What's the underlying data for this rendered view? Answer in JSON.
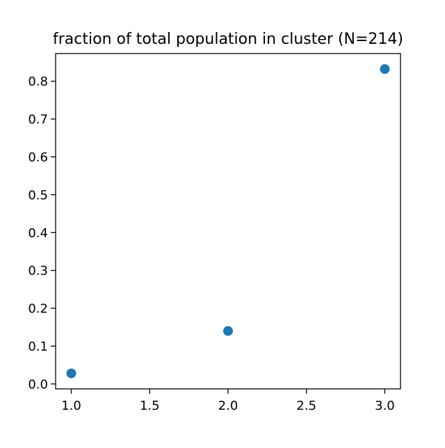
{
  "chart_data": {
    "type": "scatter",
    "title": "fraction of total population in cluster (N=214)",
    "xlabel": "",
    "ylabel": "",
    "xlim": [
      0.9,
      3.1
    ],
    "ylim": [
      -0.013,
      0.873
    ],
    "x_ticks": [
      1.0,
      1.5,
      2.0,
      2.5,
      3.0
    ],
    "x_tick_labels": [
      "1.0",
      "1.5",
      "2.0",
      "2.5",
      "3.0"
    ],
    "y_ticks": [
      0.0,
      0.1,
      0.2,
      0.3,
      0.4,
      0.5,
      0.6,
      0.7,
      0.8
    ],
    "y_tick_labels": [
      "0.0",
      "0.1",
      "0.2",
      "0.3",
      "0.4",
      "0.5",
      "0.6",
      "0.7",
      "0.8"
    ],
    "grid": false,
    "legend": "none",
    "marker_color": "#1f77b4",
    "series": [
      {
        "x": [
          1.0,
          2.0,
          3.0
        ],
        "y": [
          0.028,
          0.14,
          0.832
        ]
      }
    ]
  }
}
